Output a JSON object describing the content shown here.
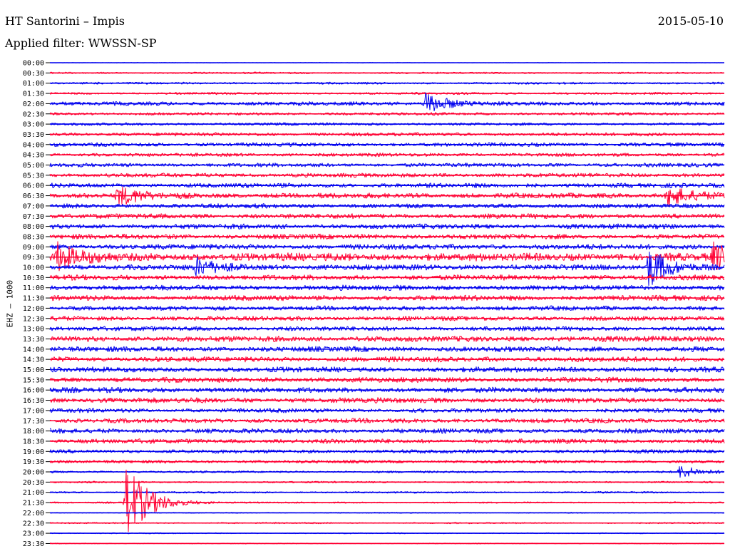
{
  "header": {
    "station": "HT Santorini – Impis",
    "date": "2015-05-10",
    "filter_label": "Applied filter: WWSSN-SP"
  },
  "colors": {
    "odd": "#0000ee",
    "even": "#ff0033",
    "axis": "#000000"
  },
  "chart_data": {
    "type": "line",
    "title": "HT Santorini – Impis",
    "subtitle": "Applied filter: WWSSN-SP",
    "ylabel": "EHZ – 1000",
    "xlabel": "",
    "grid": false,
    "legend": "none",
    "trace_minutes": 30,
    "row_labels": [
      "00:00",
      "00:30",
      "01:00",
      "01:30",
      "02:00",
      "02:30",
      "03:00",
      "03:30",
      "04:00",
      "04:30",
      "05:00",
      "05:30",
      "06:00",
      "06:30",
      "07:00",
      "07:30",
      "08:00",
      "08:30",
      "09:00",
      "09:30",
      "10:00",
      "10:30",
      "11:00",
      "11:30",
      "12:00",
      "12:30",
      "13:00",
      "13:30",
      "14:00",
      "14:30",
      "15:00",
      "15:30",
      "16:00",
      "16:30",
      "17:00",
      "17:30",
      "18:00",
      "18:30",
      "19:00",
      "19:30",
      "20:00",
      "20:30",
      "21:00",
      "21:30",
      "22:00",
      "22:30",
      "23:00",
      "23:30"
    ],
    "noise_level": [
      0.3,
      1.0,
      1.2,
      1.3,
      2.2,
      1.6,
      1.6,
      2.0,
      2.2,
      2.0,
      2.2,
      2.4,
      2.6,
      3.0,
      2.6,
      2.8,
      2.8,
      2.8,
      3.0,
      4.5,
      3.2,
      3.0,
      3.0,
      3.0,
      2.6,
      2.6,
      2.6,
      3.2,
      3.0,
      3.0,
      3.0,
      3.0,
      3.0,
      3.0,
      2.4,
      2.6,
      2.6,
      2.6,
      2.2,
      1.8,
      1.2,
      1.0,
      1.0,
      0.9,
      0.6,
      0.8,
      0.6,
      0.5
    ],
    "events": [
      {
        "trace": "21:30",
        "minute": 3.4,
        "amplitude": 9.0
      },
      {
        "trace": "10:00",
        "minute": 26.6,
        "amplitude": 4.5
      },
      {
        "trace": "02:00",
        "minute": 16.7,
        "amplitude": 2.5
      },
      {
        "trace": "06:30",
        "minute": 3.0,
        "amplitude": 2.2
      },
      {
        "trace": "06:30",
        "minute": 27.5,
        "amplitude": 2.5
      },
      {
        "trace": "09:30",
        "minute": 29.5,
        "amplitude": 3.0
      },
      {
        "trace": "09:30",
        "minute": 0.3,
        "amplitude": 3.0
      },
      {
        "trace": "10:00",
        "minute": 6.5,
        "amplitude": 2.0
      },
      {
        "trace": "20:00",
        "minute": 28.0,
        "amplitude": 1.5
      }
    ]
  }
}
